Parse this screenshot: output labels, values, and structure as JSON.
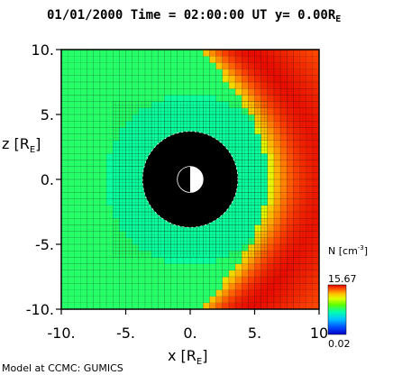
{
  "chart_data": {
    "type": "heatmap",
    "title": "01/01/2000 Time = 02:00:00 UT y= 0.00R",
    "title_subscript": "E",
    "xlabel": "x [R",
    "xlabel_subscript": "E",
    "xlabel_close": "]",
    "ylabel": "z [R",
    "ylabel_subscript": "E",
    "ylabel_close": "]",
    "xlim": [
      -10,
      10
    ],
    "ylim": [
      -10,
      10
    ],
    "x_ticks": [
      {
        "value": -10,
        "label": "-10."
      },
      {
        "value": -5,
        "label": "-5."
      },
      {
        "value": 0,
        "label": "0."
      },
      {
        "value": 5,
        "label": "5."
      },
      {
        "value": 10,
        "label": "10"
      }
    ],
    "y_ticks": [
      {
        "value": 10,
        "label": "10."
      },
      {
        "value": 5,
        "label": "5."
      },
      {
        "value": 0,
        "label": "0."
      },
      {
        "value": -5,
        "label": "-5."
      },
      {
        "value": -10,
        "label": "-10."
      }
    ],
    "colorbar": {
      "label": "N [cm",
      "label_superscript": "-3",
      "label_close": "]",
      "max_label": "15.67",
      "min_label": "0.02",
      "min": 0.02,
      "max": 15.67,
      "colors": [
        "#0000c8",
        "#0050ff",
        "#00b4ff",
        "#00ffd0",
        "#20ff40",
        "#c8ff00",
        "#ffdc00",
        "#ff8000",
        "#ff2000",
        "#e00000"
      ]
    },
    "inner_boundary_radius": 3.7,
    "earth_radius": 1.0,
    "background_density": 0.6,
    "bow_shock_standoff": 5.8,
    "magnetosheath_peak_density": 15.67,
    "grid": true,
    "legend": "right"
  },
  "footer": "Model at CCMC: GUMICS"
}
